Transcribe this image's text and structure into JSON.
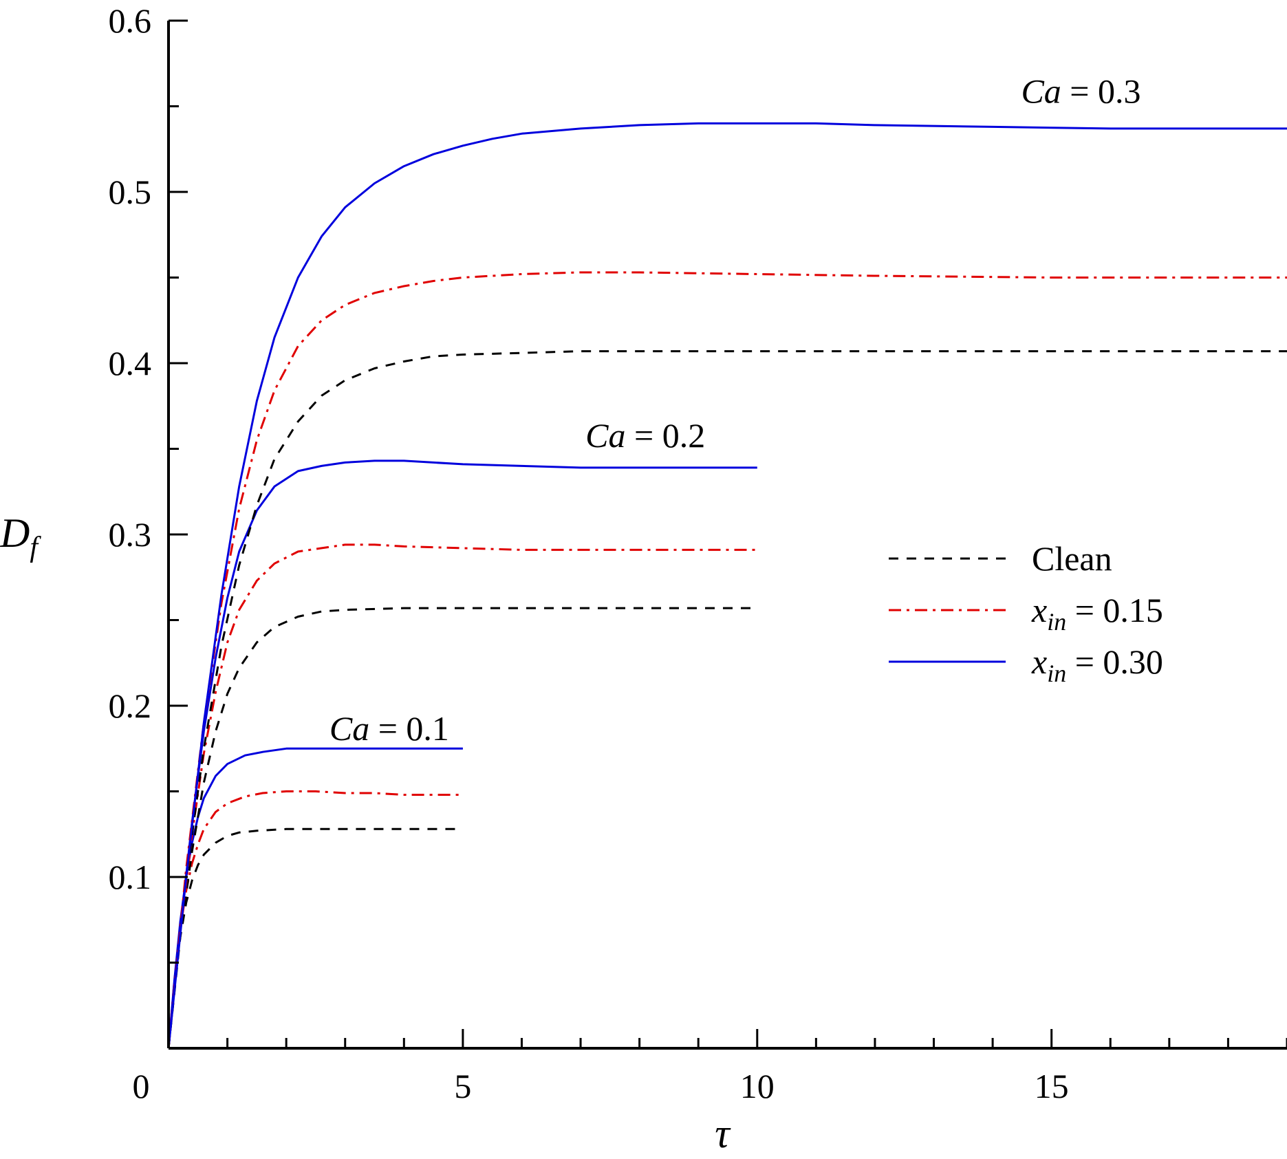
{
  "chart_data": {
    "type": "line",
    "title": "",
    "xlabel": "τ",
    "ylabel_main": "D",
    "ylabel_sub": "f",
    "xlim": [
      0,
      19
    ],
    "ylim": [
      0,
      0.6
    ],
    "x_ticks": [
      0,
      5,
      10,
      15
    ],
    "x_tick_labels": [
      "0",
      "5",
      "10",
      "15"
    ],
    "x_minor_step": 1,
    "y_ticks": [
      0.1,
      0.2,
      0.3,
      0.4,
      0.5,
      0.6
    ],
    "y_tick_labels": [
      "0.1",
      "0.2",
      "0.3",
      "0.4",
      "0.5",
      "0.6"
    ],
    "y_minor_step": 0.05,
    "grid": false,
    "legend_position": "right",
    "legend": [
      {
        "key": "clean",
        "prefix": "Clean",
        "var": "",
        "sub": "",
        "rest": ""
      },
      {
        "key": "x015",
        "prefix": "",
        "var": "x",
        "sub": "in",
        "rest": " = 0.15"
      },
      {
        "key": "x030",
        "prefix": "",
        "var": "x",
        "sub": "in",
        "rest": " = 0.30"
      }
    ],
    "styles": {
      "clean": {
        "color": "#000000",
        "dash": "14 12"
      },
      "x015": {
        "color": "#e00000",
        "dash": "18 8 4 8"
      },
      "x030": {
        "color": "#0000dd",
        "dash": ""
      }
    },
    "annotations": [
      {
        "var": "Ca",
        "rest": " = 0.1",
        "x": 3.75,
        "y": 0.18
      },
      {
        "var": "Ca",
        "rest": " = 0.2",
        "x": 8.1,
        "y": 0.351
      },
      {
        "var": "Ca",
        "rest": " = 0.3",
        "x": 15.5,
        "y": 0.552
      }
    ],
    "series": [
      {
        "group": "Ca = 0.1",
        "style": "clean",
        "x": [
          0,
          0.1,
          0.2,
          0.3,
          0.4,
          0.5,
          0.6,
          0.8,
          1.0,
          1.2,
          1.5,
          2,
          3,
          4,
          5
        ],
        "y": [
          0,
          0.038,
          0.065,
          0.085,
          0.098,
          0.107,
          0.113,
          0.12,
          0.124,
          0.126,
          0.127,
          0.128,
          0.128,
          0.128,
          0.128
        ]
      },
      {
        "group": "Ca = 0.1",
        "style": "x015",
        "x": [
          0,
          0.1,
          0.2,
          0.3,
          0.4,
          0.5,
          0.6,
          0.8,
          1.0,
          1.3,
          1.6,
          2.0,
          2.5,
          3.0,
          3.5,
          4.0,
          5.0
        ],
        "y": [
          0,
          0.04,
          0.07,
          0.092,
          0.108,
          0.119,
          0.128,
          0.138,
          0.143,
          0.147,
          0.149,
          0.15,
          0.15,
          0.149,
          0.149,
          0.148,
          0.148
        ]
      },
      {
        "group": "Ca = 0.1",
        "style": "x030",
        "x": [
          0,
          0.1,
          0.2,
          0.3,
          0.4,
          0.5,
          0.6,
          0.8,
          1.0,
          1.3,
          1.6,
          2.0,
          2.5,
          3.0,
          4.0,
          5.0
        ],
        "y": [
          0,
          0.04,
          0.074,
          0.1,
          0.12,
          0.135,
          0.146,
          0.159,
          0.166,
          0.171,
          0.173,
          0.175,
          0.175,
          0.175,
          0.175,
          0.175
        ]
      },
      {
        "group": "Ca = 0.2",
        "style": "clean",
        "x": [
          0,
          0.2,
          0.4,
          0.6,
          0.8,
          1.0,
          1.2,
          1.5,
          1.8,
          2.2,
          2.6,
          3.0,
          4.0,
          5.0,
          7.0,
          10.0
        ],
        "y": [
          0,
          0.065,
          0.115,
          0.155,
          0.185,
          0.207,
          0.222,
          0.237,
          0.246,
          0.252,
          0.255,
          0.256,
          0.257,
          0.257,
          0.257,
          0.257
        ]
      },
      {
        "group": "Ca = 0.2",
        "style": "x015",
        "x": [
          0,
          0.2,
          0.4,
          0.6,
          0.8,
          1.0,
          1.2,
          1.5,
          1.8,
          2.2,
          2.6,
          3.0,
          3.5,
          4.0,
          5.0,
          6.0,
          7.0,
          8.0,
          10.0
        ],
        "y": [
          0,
          0.068,
          0.125,
          0.172,
          0.208,
          0.237,
          0.256,
          0.273,
          0.283,
          0.29,
          0.292,
          0.294,
          0.294,
          0.293,
          0.292,
          0.291,
          0.291,
          0.291,
          0.291
        ]
      },
      {
        "group": "Ca = 0.2",
        "style": "x030",
        "x": [
          0,
          0.2,
          0.4,
          0.6,
          0.8,
          1.0,
          1.2,
          1.5,
          1.8,
          2.2,
          2.6,
          3.0,
          3.5,
          4.0,
          4.5,
          5.0,
          6.0,
          7.0,
          8.0,
          10.0
        ],
        "y": [
          0,
          0.07,
          0.132,
          0.185,
          0.228,
          0.263,
          0.29,
          0.314,
          0.328,
          0.337,
          0.34,
          0.342,
          0.343,
          0.343,
          0.342,
          0.341,
          0.34,
          0.339,
          0.339,
          0.339
        ]
      },
      {
        "group": "Ca = 0.3",
        "style": "clean",
        "x": [
          0,
          0.3,
          0.6,
          0.9,
          1.2,
          1.5,
          1.8,
          2.2,
          2.6,
          3.0,
          3.5,
          4.0,
          4.5,
          5.0,
          6.0,
          7.0,
          8.0,
          10.0,
          12.0,
          15.0,
          19.0
        ],
        "y": [
          0,
          0.1,
          0.175,
          0.235,
          0.282,
          0.317,
          0.344,
          0.366,
          0.381,
          0.39,
          0.397,
          0.401,
          0.404,
          0.405,
          0.406,
          0.407,
          0.407,
          0.407,
          0.407,
          0.407,
          0.407
        ]
      },
      {
        "group": "Ca = 0.3",
        "style": "x015",
        "x": [
          0,
          0.3,
          0.6,
          0.9,
          1.2,
          1.5,
          1.8,
          2.2,
          2.6,
          3.0,
          3.5,
          4.0,
          4.5,
          5.0,
          5.5,
          6.0,
          7.0,
          8.0,
          10.0,
          12.0,
          15.0,
          19.0
        ],
        "y": [
          0,
          0.105,
          0.19,
          0.26,
          0.315,
          0.355,
          0.384,
          0.41,
          0.425,
          0.434,
          0.441,
          0.445,
          0.448,
          0.45,
          0.451,
          0.452,
          0.453,
          0.453,
          0.452,
          0.451,
          0.45,
          0.45
        ]
      },
      {
        "group": "Ca = 0.3",
        "style": "x030",
        "x": [
          0,
          0.3,
          0.6,
          0.9,
          1.2,
          1.5,
          1.8,
          2.2,
          2.6,
          3.0,
          3.5,
          4.0,
          4.5,
          5.0,
          5.5,
          6.0,
          7.0,
          8.0,
          9.0,
          10.0,
          11.0,
          12.0,
          14.0,
          16.0,
          19.0
        ],
        "y": [
          0,
          0.1,
          0.19,
          0.265,
          0.328,
          0.378,
          0.415,
          0.45,
          0.474,
          0.491,
          0.505,
          0.515,
          0.522,
          0.527,
          0.531,
          0.534,
          0.537,
          0.539,
          0.54,
          0.54,
          0.54,
          0.539,
          0.538,
          0.537,
          0.537
        ]
      }
    ]
  }
}
